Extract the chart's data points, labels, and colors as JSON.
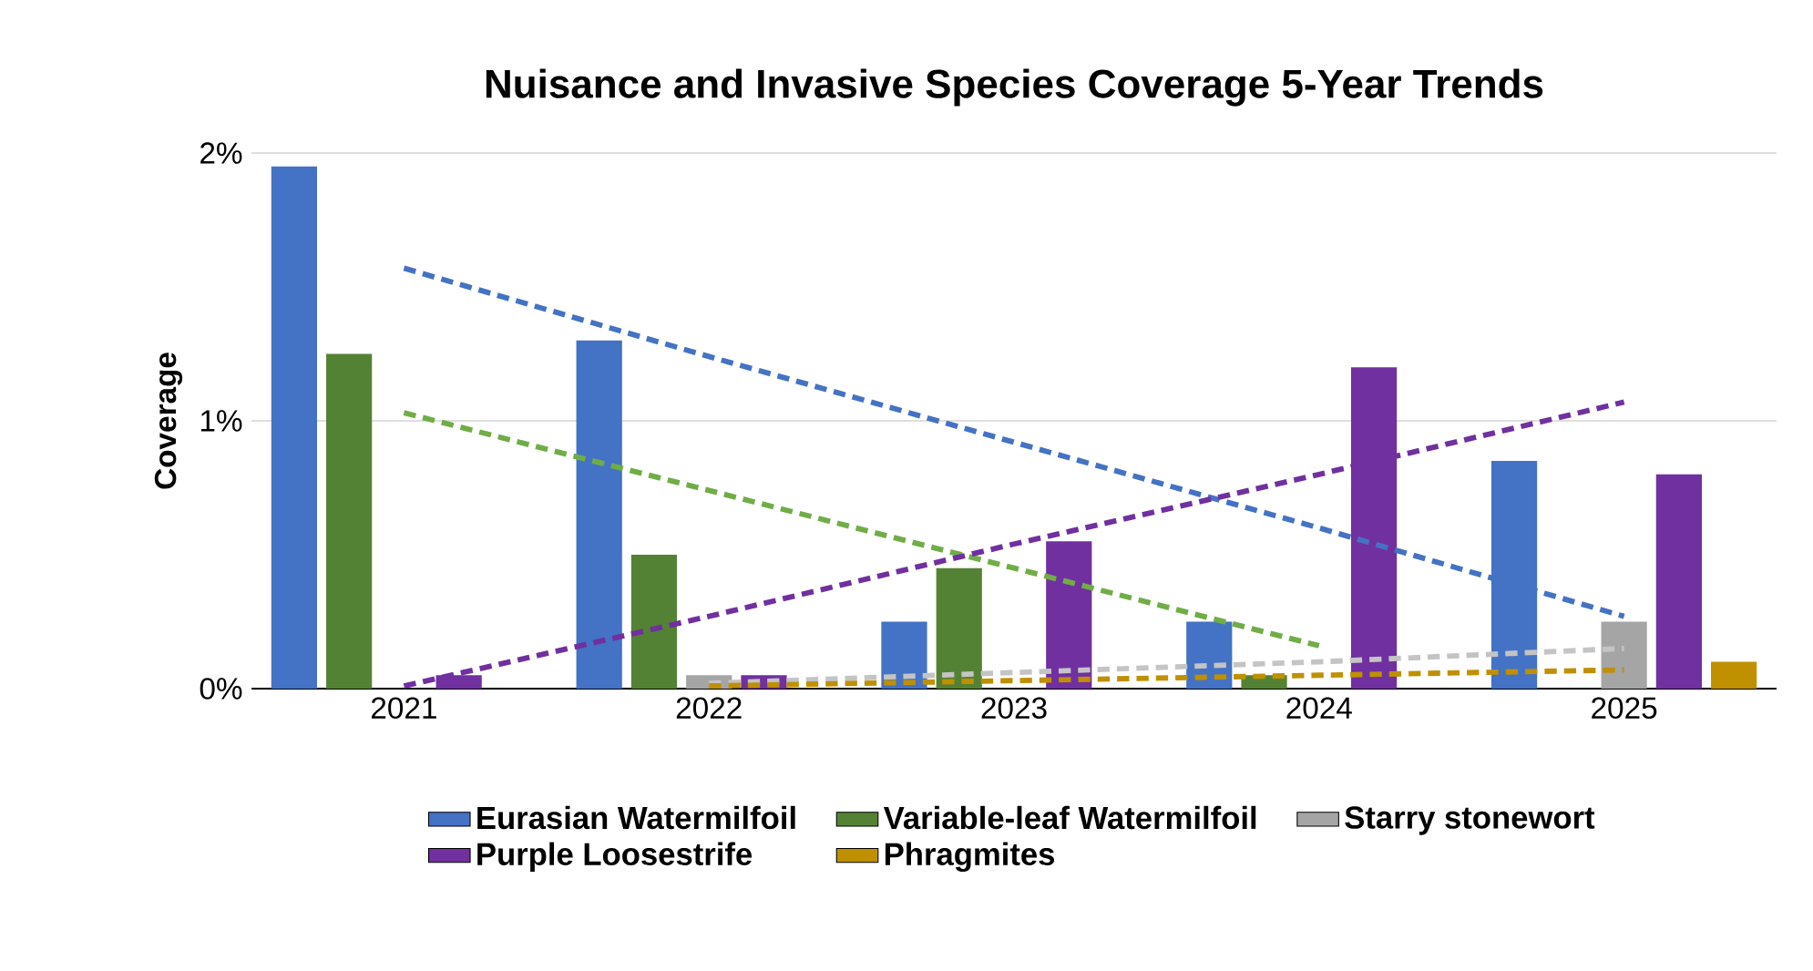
{
  "chart_data": {
    "type": "bar",
    "title": "Nuisance and Invasive Species Coverage 5-Year Trends",
    "ylabel": "Coverage",
    "categories": [
      "2021",
      "2022",
      "2023",
      "2024",
      "2025"
    ],
    "ylim": [
      0,
      2
    ],
    "yticks": [
      {
        "value": 0,
        "label": "0%"
      },
      {
        "value": 1,
        "label": "1%"
      },
      {
        "value": 2,
        "label": "2%"
      }
    ],
    "grid": "y",
    "legend": "bottom",
    "series": [
      {
        "name": "Eurasian Watermilfoil",
        "color": "#4472c4",
        "values": [
          1.95,
          1.3,
          0.25,
          0.25,
          0.85
        ]
      },
      {
        "name": "Variable-leaf Watermilfoil",
        "color": "#548235",
        "values": [
          1.25,
          0.5,
          0.45,
          0.05,
          0
        ]
      },
      {
        "name": "Starry stonewort",
        "color": "#a5a5a5",
        "values": [
          0,
          0.05,
          0,
          0,
          0.25
        ]
      },
      {
        "name": "Purple Loosestrife",
        "color": "#7030a0",
        "values": [
          0.05,
          0.05,
          0.55,
          1.2,
          0.8
        ]
      },
      {
        "name": "Phragmites",
        "color": "#bf9000",
        "values": [
          0,
          0,
          0,
          0,
          0.1
        ]
      },
      {
        "type": "line",
        "color": "#4472c4",
        "line_style": "dashed",
        "marker": "none",
        "values": [
          1.57,
          1.24,
          0.92,
          0.6,
          0.27
        ]
      },
      {
        "type": "line",
        "color": "#70ad47",
        "line_style": "dashed",
        "marker": "none",
        "values": [
          1.03,
          0.74,
          0.45,
          0.16,
          null
        ]
      },
      {
        "type": "line",
        "color": "#7030a0",
        "line_style": "dashed",
        "marker": "none",
        "values": [
          0.01,
          0.27,
          0.54,
          0.8,
          1.07
        ]
      },
      {
        "type": "line",
        "color": "#c4c4c4",
        "line_style": "dashed",
        "marker": "none",
        "values": [
          null,
          0.02,
          0.06,
          0.1,
          0.15
        ]
      },
      {
        "type": "line",
        "color": "#bf9000",
        "line_style": "dashed",
        "marker": "none",
        "values": [
          null,
          0.01,
          0.03,
          0.05,
          0.07
        ]
      }
    ]
  }
}
